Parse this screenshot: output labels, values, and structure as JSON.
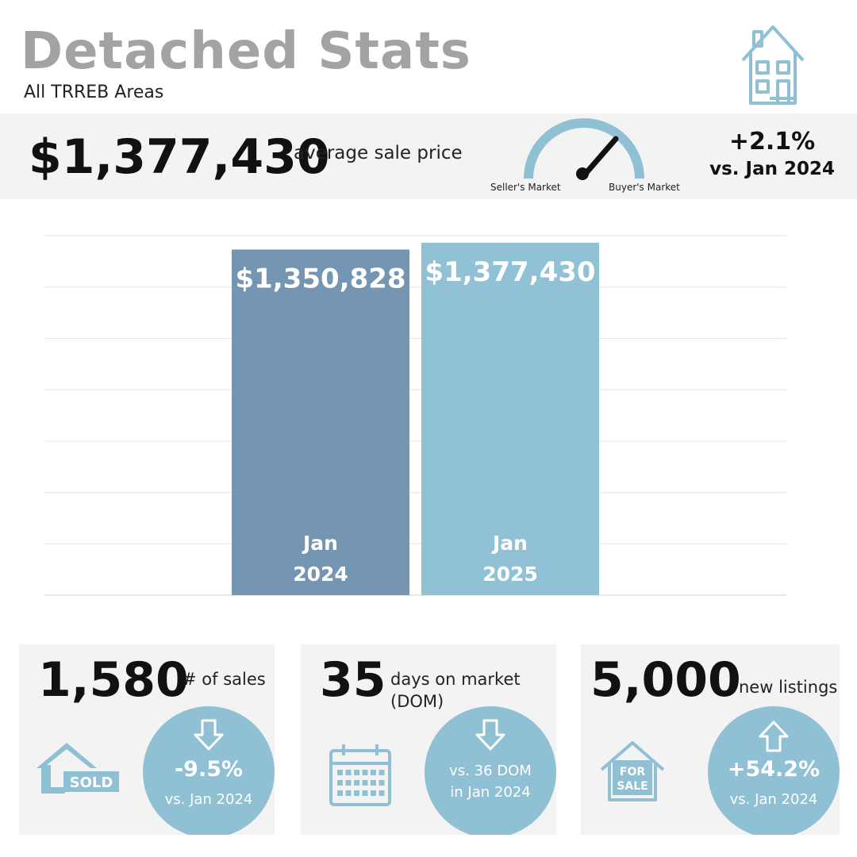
{
  "header": {
    "title": "Detached Stats",
    "subtitle": "All TRREB Areas"
  },
  "banner": {
    "price": "$1,377,430",
    "price_label": "average sale price",
    "gauge_left_label": "Seller's Market",
    "gauge_right_label": "Buyer's Market",
    "change_pct": "+2.1%",
    "change_vs": "vs. Jan 2024"
  },
  "chart_data": {
    "type": "bar",
    "categories": [
      "Jan 2024",
      "Jan 2025"
    ],
    "category_lines": [
      [
        "Jan",
        "2024"
      ],
      [
        "Jan",
        "2025"
      ]
    ],
    "values": [
      1350828,
      1377430
    ],
    "value_labels": [
      "$1,350,828",
      "$1,377,430"
    ],
    "colors": [
      "#7496b2",
      "#90c1d5"
    ],
    "grid": true
  },
  "cards": {
    "sales": {
      "number": "1,580",
      "label": "# of sales",
      "icon_text": "SOLD",
      "pct": "-9.5%",
      "vs": "vs. Jan 2024"
    },
    "dom": {
      "number": "35",
      "label_line1": "days on market",
      "label_line2": "(DOM)",
      "vs_line1": "vs. 36 DOM",
      "vs_line2": "in Jan 2024"
    },
    "listings": {
      "number": "5,000",
      "label": "new listings",
      "icon_line1": "FOR",
      "icon_line2": "SALE",
      "pct": "+54.2%",
      "vs": "vs. Jan 2024"
    }
  },
  "colors": {
    "accent": "#8fc0d4",
    "bar_dark": "#7496b2",
    "title_gray": "#a3a3a3",
    "panel": "#f3f3f3"
  }
}
